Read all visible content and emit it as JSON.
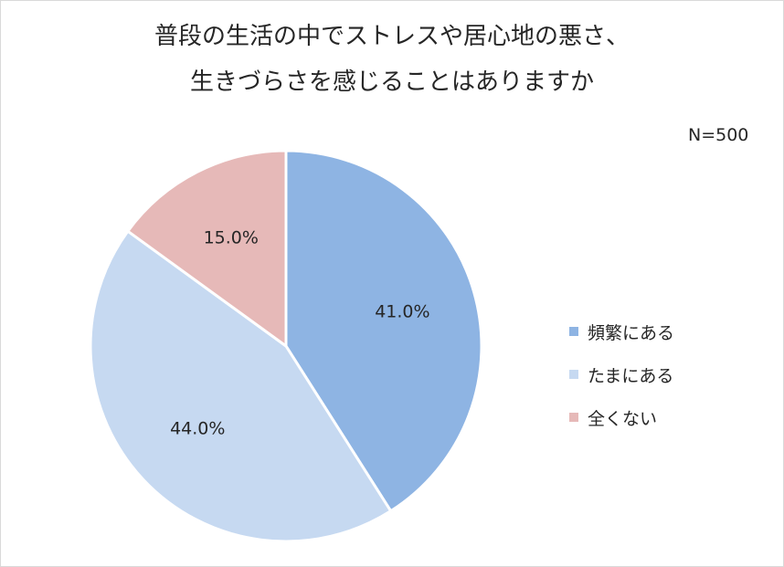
{
  "chart_data": {
    "type": "pie",
    "title_lines": [
      "普段の生活の中でストレスや居心地の悪さ、",
      "生きづらさを感じることはありますか"
    ],
    "annotation": "N=500",
    "series": [
      {
        "name": "頻繁にある",
        "value": 41.0,
        "label": "41.0%",
        "color": "#8eb4e3"
      },
      {
        "name": "たまにある",
        "value": 44.0,
        "label": "44.0%",
        "color": "#c6d9f1"
      },
      {
        "name": "全くない",
        "value": 15.0,
        "label": "15.0%",
        "color": "#e6b9b8"
      }
    ],
    "legend_position": "right",
    "start_angle": "12 o'clock",
    "direction": "clockwise"
  }
}
